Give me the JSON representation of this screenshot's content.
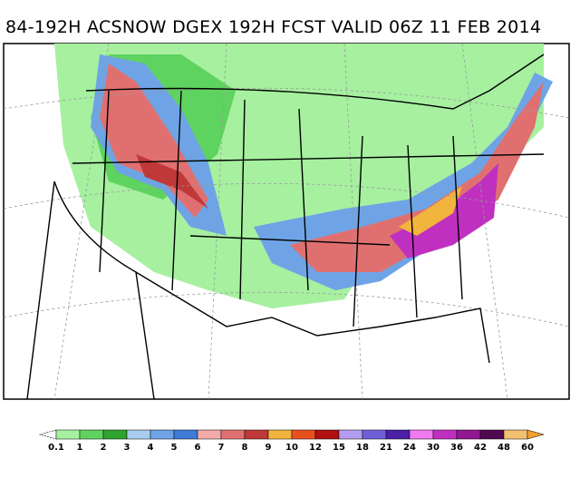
{
  "header": {
    "title": "84-192H ACSNOW DGEX 192H FCST VALID 06Z 11 FEB 2014"
  },
  "colorbar": {
    "labels": [
      "0.1",
      "1",
      "2",
      "3",
      "4",
      "5",
      "6",
      "7",
      "8",
      "9",
      "10",
      "12",
      "15",
      "18",
      "21",
      "24",
      "30",
      "36",
      "42",
      "48",
      "60"
    ],
    "colors": [
      "#a6f0a0",
      "#5fd35f",
      "#2ea52e",
      "#a8cdee",
      "#6ea4e6",
      "#3f7ad6",
      "#f2aaaa",
      "#e07070",
      "#c03838",
      "#f2b43c",
      "#e85020",
      "#b01010",
      "#b49cf0",
      "#7060d8",
      "#4a20a8",
      "#f078f0",
      "#c030c0",
      "#901890",
      "#500850",
      "#f0c070"
    ],
    "under_color": "#ffffff",
    "over_color": "#f0a030"
  }
}
